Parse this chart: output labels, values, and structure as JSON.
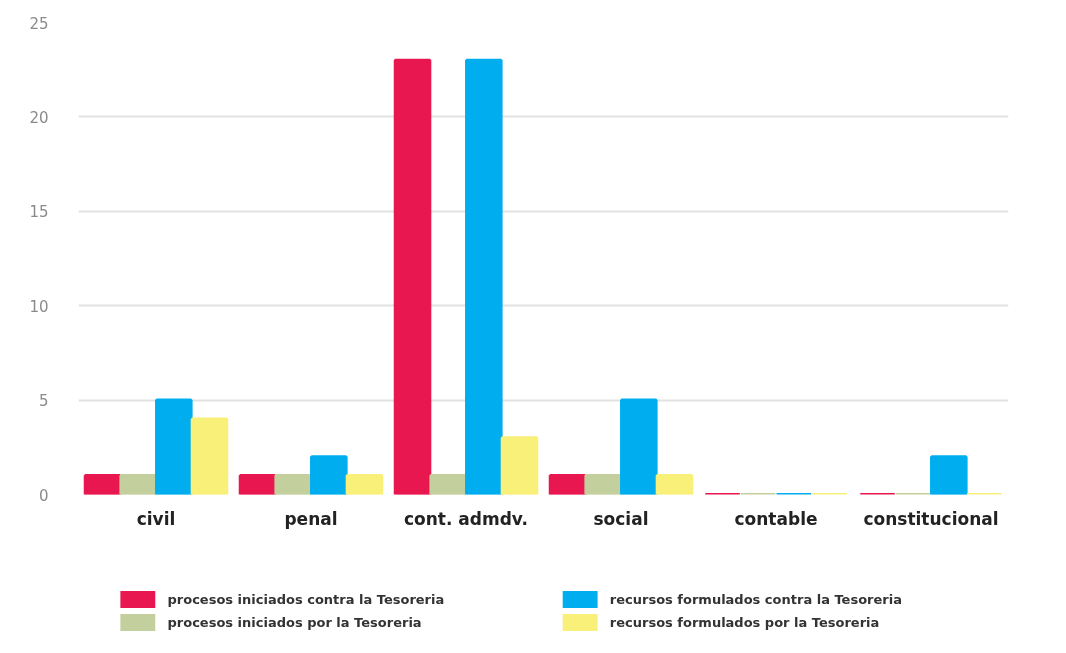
{
  "chart_data": {
    "type": "bar",
    "categories": [
      "civil",
      "penal",
      "cont. admdv.",
      "social",
      "contable",
      "constitucional"
    ],
    "series": [
      {
        "name": "procesos iniciados contra la Tesoreria",
        "color": "#e8174f",
        "values": [
          1,
          1,
          23,
          1,
          0,
          0
        ]
      },
      {
        "name": "procesos iniciados por la Tesoreria",
        "color": "#c4cf9e",
        "values": [
          1,
          1,
          1,
          1,
          0,
          0
        ]
      },
      {
        "name": "recursos formulados contra la Tesoreria",
        "color": "#00aeef",
        "values": [
          5,
          2,
          23,
          5,
          0,
          2
        ]
      },
      {
        "name": "recursos formulados por la Tesoreria",
        "color": "#f9f07a",
        "values": [
          4,
          1,
          3,
          1,
          0,
          0
        ]
      }
    ],
    "ylim": [
      0,
      25
    ],
    "yticks": [
      0,
      5,
      10,
      15,
      20,
      25
    ],
    "grid": "y",
    "legend": "bottom"
  }
}
